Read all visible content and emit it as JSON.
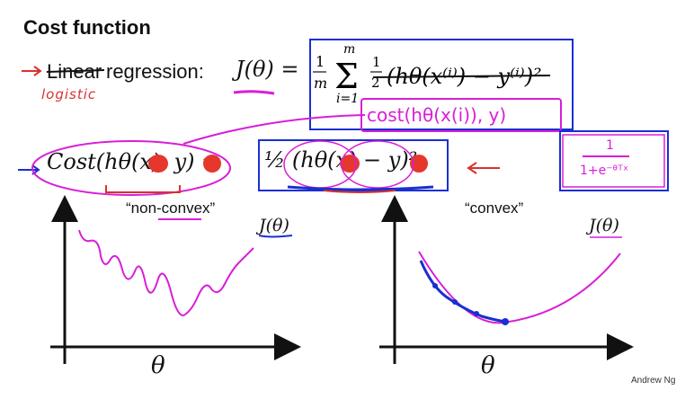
{
  "slide": {
    "title": "Cost function",
    "author": "Andrew Ng"
  },
  "line1": {
    "struck_word": "Linear",
    "rest": "regression:",
    "handwritten_replacement": "logistic",
    "lhs": "J(θ) =",
    "rhs_summary": "1/m Σ_{i=1}^{m} ½ (h_θ(x^{(i)}) − y^{(i)})²",
    "handwritten_cost": "cost(hθ(x(i)), y)"
  },
  "line2": {
    "lhs": "Cost(hθ(x), y) =",
    "rhs": "½ (hθ(x) − y)²",
    "sigmoid_note": "1 / (1+e^{-θᵀx})"
  },
  "plots": {
    "left_label": "“non-convex”",
    "right_label": "“convex”",
    "y_label": "J(θ)",
    "x_label": "θ"
  },
  "colors": {
    "red_ink": "#d8322c",
    "magenta_ink": "#d81ed8",
    "blue_ink": "#1a2fd1"
  }
}
